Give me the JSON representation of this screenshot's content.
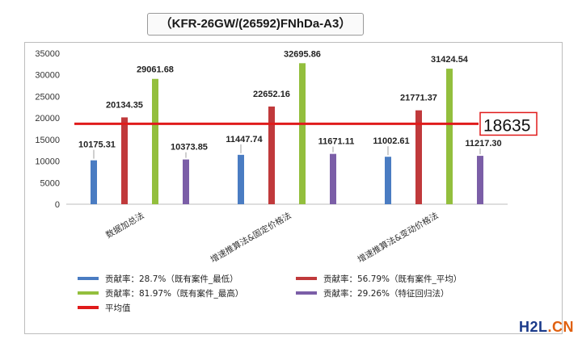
{
  "title": "（KFR-26GW/(26592)FNhDa-A3）",
  "chart_data": {
    "type": "bar",
    "title": "（KFR-26GW/(26592)FNhDa-A3）",
    "categories": [
      "数据加总法",
      "增速推算法&固定价格法",
      "增速推算法&变动价格法"
    ],
    "ylim": [
      0,
      35000
    ],
    "yticks": [
      0,
      5000,
      10000,
      15000,
      20000,
      25000,
      30000,
      35000
    ],
    "grid": false,
    "legend_position": "bottom",
    "series": [
      {
        "name": "贡献率：28.7%（既有案件_最低）",
        "color": "#4a7cc2",
        "values": [
          10175.31,
          11447.74,
          11002.61
        ],
        "labels": [
          "10175.31",
          "11447.74",
          "11002.61"
        ]
      },
      {
        "name": "贡献率：56.79%（既有案件_平均）",
        "color": "#c0393b",
        "values": [
          20134.35,
          22652.16,
          21771.37
        ],
        "labels": [
          "20134.35",
          "22652.16",
          "21771.37"
        ]
      },
      {
        "name": "贡献率：81.97%（既有案件_最高）",
        "color": "#93bf3d",
        "values": [
          29061.68,
          32695.86,
          31424.54
        ],
        "labels": [
          "29061.68",
          "32695.86",
          "31424.54"
        ]
      },
      {
        "name": "贡献率：29.26%（特征回归法）",
        "color": "#7b5ea7",
        "values": [
          10373.85,
          11671.11,
          11217.3
        ],
        "labels": [
          "10373.85",
          "11671.11",
          "11217.30"
        ]
      }
    ],
    "reference_line": {
      "name": "平均值",
      "value": 18635,
      "label": "18635",
      "color": "#e01b1b"
    }
  },
  "watermark": {
    "part_a": "H2L",
    "part_b": ".CN"
  }
}
